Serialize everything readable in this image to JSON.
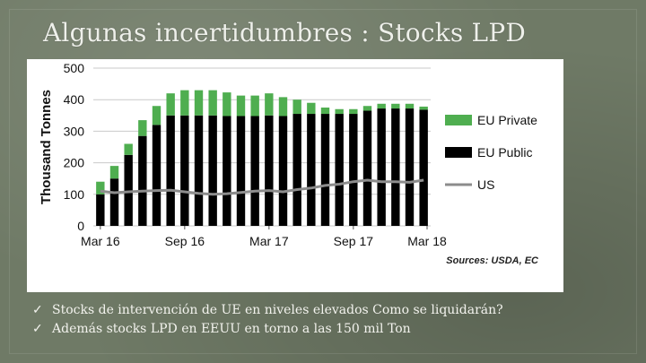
{
  "slide": {
    "title": "Algunas incertidumbres : Stocks LPD",
    "bullets": [
      "Stocks de intervención de UE en niveles elevados Como se liquidarán?",
      "Además stocks LPD en EEUU en torno a las 150 mil Ton"
    ],
    "bullet_marker": "✓"
  },
  "colors": {
    "eu_private": "#4fae50",
    "eu_public": "#000000",
    "us": "#8c8c8c",
    "grid": "#c9c9c9"
  },
  "chart_data": {
    "type": "bar",
    "ylabel": "Thousand Tonnes",
    "ylim": [
      0,
      500
    ],
    "yticks": [
      0,
      100,
      200,
      300,
      400,
      500
    ],
    "xtick_labels": [
      "Mar 16",
      "Sep 16",
      "Mar 17",
      "Sep 17",
      "Mar 18"
    ],
    "grid": true,
    "legend": "right",
    "source": "Sources: USDA, EC",
    "categories": [
      "Mar 16",
      "Apr 16",
      "May 16",
      "Jun 16",
      "Jul 16",
      "Aug 16",
      "Sep 16",
      "Oct 16",
      "Nov 16",
      "Dec 16",
      "Jan 17",
      "Feb 17",
      "Mar 17",
      "Apr 17",
      "May 17",
      "Jun 17",
      "Jul 17",
      "Aug 17",
      "Sep 17",
      "Oct 17",
      "Nov 17",
      "Dec 17",
      "Jan 18",
      "Feb 18"
    ],
    "series": [
      {
        "name": "EU Private",
        "stack": "EU",
        "kind": "bar",
        "values": [
          40,
          40,
          35,
          50,
          60,
          70,
          80,
          80,
          80,
          75,
          65,
          65,
          70,
          60,
          45,
          35,
          20,
          15,
          15,
          15,
          15,
          15,
          15,
          10
        ]
      },
      {
        "name": "EU Public",
        "stack": "EU",
        "kind": "bar",
        "values": [
          100,
          150,
          225,
          285,
          320,
          350,
          350,
          350,
          350,
          348,
          348,
          348,
          350,
          348,
          355,
          355,
          355,
          355,
          355,
          365,
          372,
          372,
          372,
          368
        ]
      },
      {
        "name": "US",
        "kind": "line",
        "values": [
          110,
          105,
          108,
          110,
          112,
          113,
          108,
          103,
          100,
          102,
          106,
          110,
          112,
          108,
          115,
          120,
          128,
          132,
          140,
          145,
          140,
          140,
          138,
          145
        ]
      }
    ]
  }
}
